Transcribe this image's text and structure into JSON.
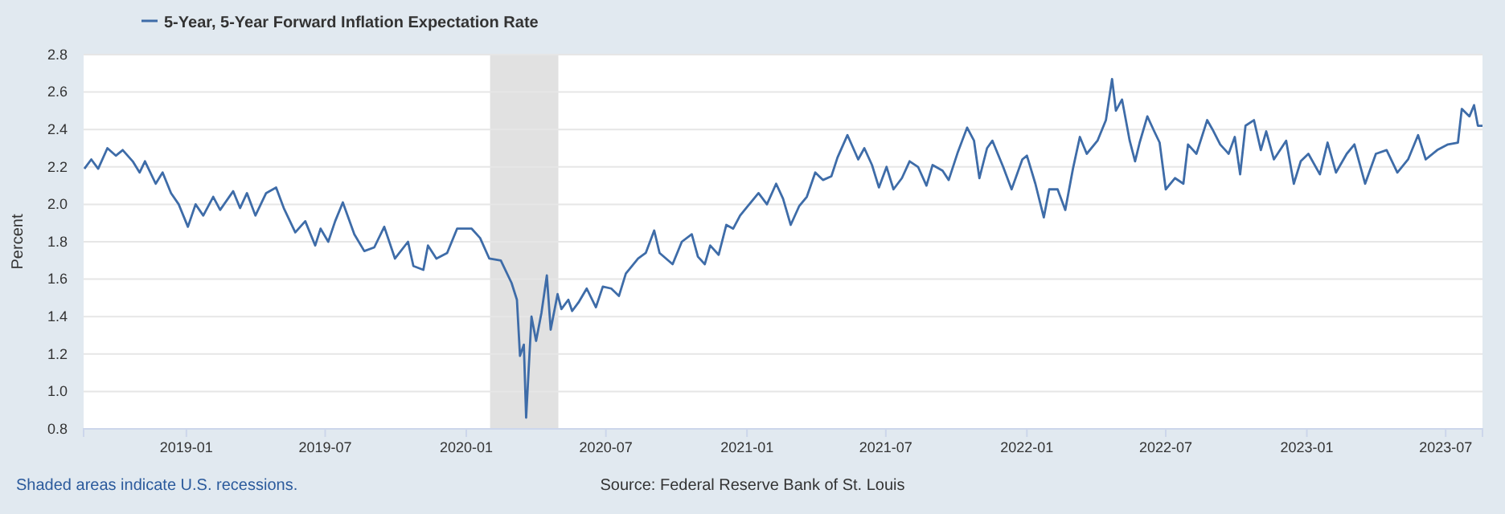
{
  "chart_data": {
    "type": "line",
    "ylabel": "Percent",
    "legend": "top left",
    "grid": "y",
    "line_style": "solid",
    "marker": "none",
    "annotations": [
      "Shaded areas indicate U.S. recessions.",
      "Source: Federal Reserve Bank of St. Louis"
    ],
    "xlim": [
      "2018-08-20",
      "2023-08-18"
    ],
    "xticks": [
      "2019-01",
      "2019-07",
      "2020-01",
      "2020-07",
      "2021-01",
      "2021-07",
      "2022-01",
      "2022-07",
      "2023-01",
      "2023-07"
    ],
    "ylim": [
      0.8,
      2.8
    ],
    "yticks": [
      {
        "value": 0.8,
        "label": "0.8"
      },
      {
        "value": 1,
        "label": "1.0"
      },
      {
        "value": 1.2,
        "label": "1.2"
      },
      {
        "value": 1.4,
        "label": "1.4"
      },
      {
        "value": 1.6,
        "label": "1.6"
      },
      {
        "value": 1.8,
        "label": "1.8"
      },
      {
        "value": 2,
        "label": "2.0"
      },
      {
        "value": 2.2,
        "label": "2.2"
      },
      {
        "value": 2.4,
        "label": "2.4"
      },
      {
        "value": 2.6,
        "label": "2.6"
      },
      {
        "value": 2.8,
        "label": "2.8"
      }
    ],
    "bands": [
      {
        "axis": "x",
        "from": "2020-02-01",
        "to": "2020-04-30",
        "color": "#e1e1e1"
      }
    ],
    "series": [
      {
        "name": "5-Year, 5-Year Forward Inflation Expectation Rate",
        "color": "#3e6ca8",
        "x": [
          "2018-08-21",
          "2018-08-30",
          "2018-09-08",
          "2018-09-20",
          "2018-10-01",
          "2018-10-10",
          "2018-10-23",
          "2018-11-01",
          "2018-11-08",
          "2018-11-22",
          "2018-12-01",
          "2018-12-12",
          "2018-12-22",
          "2019-01-03",
          "2019-01-13",
          "2019-01-23",
          "2019-02-05",
          "2019-02-14",
          "2019-03-03",
          "2019-03-12",
          "2019-03-21",
          "2019-04-01",
          "2019-04-15",
          "2019-04-28",
          "2019-05-08",
          "2019-05-23",
          "2019-06-05",
          "2019-06-18",
          "2019-06-25",
          "2019-07-05",
          "2019-07-14",
          "2019-07-24",
          "2019-08-08",
          "2019-08-21",
          "2019-09-03",
          "2019-09-16",
          "2019-09-30",
          "2019-10-17",
          "2019-10-24",
          "2019-11-06",
          "2019-11-12",
          "2019-11-23",
          "2019-12-07",
          "2019-12-20",
          "2020-01-08",
          "2020-01-19",
          "2020-01-31",
          "2020-02-15",
          "2020-02-29",
          "2020-03-07",
          "2020-03-11",
          "2020-03-16",
          "2020-03-19",
          "2020-03-26",
          "2020-04-01",
          "2020-04-08",
          "2020-04-15",
          "2020-04-20",
          "2020-04-29",
          "2020-05-04",
          "2020-05-13",
          "2020-05-18",
          "2020-05-27",
          "2020-06-06",
          "2020-06-18",
          "2020-06-27",
          "2020-07-08",
          "2020-07-18",
          "2020-07-27",
          "2020-08-12",
          "2020-08-22",
          "2020-09-02",
          "2020-09-09",
          "2020-09-26",
          "2020-10-08",
          "2020-10-21",
          "2020-10-29",
          "2020-11-07",
          "2020-11-14",
          "2020-11-25",
          "2020-12-05",
          "2020-12-14",
          "2020-12-23",
          "2021-01-02",
          "2021-01-16",
          "2021-01-27",
          "2021-02-08",
          "2021-02-17",
          "2021-02-27",
          "2021-03-10",
          "2021-03-20",
          "2021-03-31",
          "2021-04-10",
          "2021-04-21",
          "2021-04-29",
          "2021-05-12",
          "2021-05-26",
          "2021-06-03",
          "2021-06-13",
          "2021-06-22",
          "2021-07-02",
          "2021-07-11",
          "2021-07-22",
          "2021-08-01",
          "2021-08-12",
          "2021-08-23",
          "2021-08-31",
          "2021-09-13",
          "2021-09-21",
          "2021-10-03",
          "2021-10-15",
          "2021-10-24",
          "2021-10-31",
          "2021-11-10",
          "2021-11-17",
          "2021-12-01",
          "2021-12-12",
          "2021-12-26",
          "2022-01-01",
          "2022-01-12",
          "2022-01-23",
          "2022-01-30",
          "2022-02-10",
          "2022-02-20",
          "2022-03-02",
          "2022-03-11",
          "2022-03-20",
          "2022-04-03",
          "2022-04-14",
          "2022-04-22",
          "2022-04-27",
          "2022-05-05",
          "2022-05-15",
          "2022-05-22",
          "2022-05-28",
          "2022-06-07",
          "2022-06-16",
          "2022-06-23",
          "2022-07-01",
          "2022-07-13",
          "2022-07-24",
          "2022-07-30",
          "2022-08-10",
          "2022-08-24",
          "2022-08-31",
          "2022-09-10",
          "2022-09-21",
          "2022-09-29",
          "2022-10-06",
          "2022-10-13",
          "2022-10-24",
          "2022-11-02",
          "2022-11-09",
          "2022-11-19",
          "2022-12-05",
          "2022-12-15",
          "2022-12-24",
          "2023-01-03",
          "2023-01-18",
          "2023-01-28",
          "2023-02-08",
          "2023-02-22",
          "2023-03-04",
          "2023-03-18",
          "2023-04-01",
          "2023-04-15",
          "2023-04-29",
          "2023-05-13",
          "2023-05-26",
          "2023-06-05",
          "2023-06-20",
          "2023-07-04",
          "2023-07-17",
          "2023-07-22",
          "2023-08-01",
          "2023-08-07",
          "2023-08-12",
          "2023-08-18"
        ],
        "values": [
          2.19,
          2.24,
          2.19,
          2.3,
          2.26,
          2.29,
          2.23,
          2.17,
          2.23,
          2.11,
          2.17,
          2.06,
          2.0,
          1.88,
          2.0,
          1.94,
          2.04,
          1.97,
          2.07,
          1.98,
          2.06,
          1.94,
          2.06,
          2.09,
          1.98,
          1.85,
          1.91,
          1.78,
          1.87,
          1.8,
          1.91,
          2.01,
          1.84,
          1.75,
          1.77,
          1.88,
          1.71,
          1.8,
          1.67,
          1.65,
          1.78,
          1.71,
          1.74,
          1.87,
          1.87,
          1.82,
          1.71,
          1.7,
          1.58,
          1.49,
          1.19,
          1.25,
          0.86,
          1.4,
          1.27,
          1.42,
          1.62,
          1.33,
          1.52,
          1.44,
          1.49,
          1.43,
          1.48,
          1.55,
          1.45,
          1.56,
          1.55,
          1.51,
          1.63,
          1.71,
          1.74,
          1.86,
          1.74,
          1.68,
          1.8,
          1.84,
          1.72,
          1.68,
          1.78,
          1.73,
          1.89,
          1.87,
          1.94,
          1.99,
          2.06,
          2.0,
          2.11,
          2.03,
          1.89,
          1.99,
          2.04,
          2.17,
          2.13,
          2.15,
          2.25,
          2.37,
          2.24,
          2.3,
          2.21,
          2.09,
          2.2,
          2.08,
          2.14,
          2.23,
          2.2,
          2.1,
          2.21,
          2.18,
          2.13,
          2.28,
          2.41,
          2.34,
          2.14,
          2.3,
          2.34,
          2.2,
          2.08,
          2.24,
          2.26,
          2.11,
          1.93,
          2.08,
          2.08,
          1.97,
          2.19,
          2.36,
          2.27,
          2.34,
          2.45,
          2.67,
          2.5,
          2.56,
          2.34,
          2.23,
          2.33,
          2.47,
          2.39,
          2.33,
          2.08,
          2.14,
          2.11,
          2.32,
          2.27,
          2.45,
          2.4,
          2.32,
          2.27,
          2.36,
          2.16,
          2.42,
          2.45,
          2.29,
          2.39,
          2.24,
          2.34,
          2.11,
          2.23,
          2.27,
          2.16,
          2.33,
          2.17,
          2.27,
          2.32,
          2.11,
          2.27,
          2.29,
          2.17,
          2.24,
          2.37,
          2.24,
          2.29,
          2.32,
          2.33,
          2.51,
          2.47,
          2.53,
          2.42,
          2.42
        ]
      }
    ]
  }
}
